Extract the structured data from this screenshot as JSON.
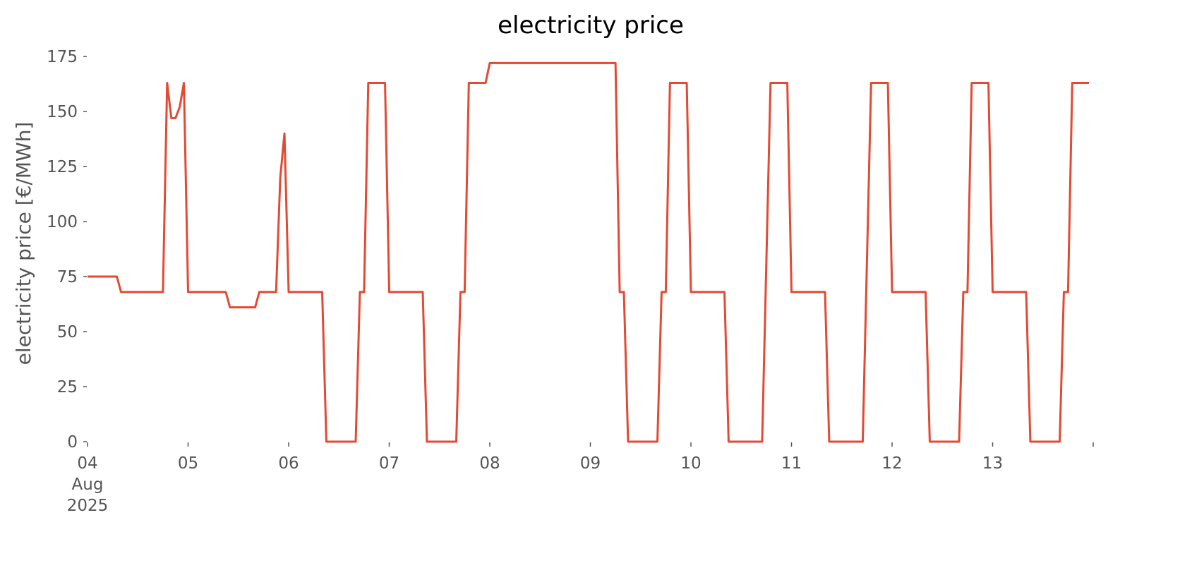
{
  "chart_data": {
    "type": "line",
    "title": "electricity price",
    "ylabel": "electricity price [€/MWh]",
    "x": [
      "2025-08-04T00:00",
      "2025-08-04T07:00",
      "2025-08-04T08:00",
      "2025-08-04T18:00",
      "2025-08-04T19:00",
      "2025-08-04T20:00",
      "2025-08-04T21:00",
      "2025-08-04T22:00",
      "2025-08-04T23:00",
      "2025-08-05T00:00",
      "2025-08-05T09:00",
      "2025-08-05T10:00",
      "2025-08-05T16:00",
      "2025-08-05T17:00",
      "2025-08-05T21:00",
      "2025-08-05T22:00",
      "2025-08-05T23:00",
      "2025-08-06T00:00",
      "2025-08-06T08:00",
      "2025-08-06T09:00",
      "2025-08-06T16:00",
      "2025-08-06T17:00",
      "2025-08-06T18:00",
      "2025-08-06T19:00",
      "2025-08-06T23:00",
      "2025-08-07T00:00",
      "2025-08-07T08:00",
      "2025-08-07T09:00",
      "2025-08-07T16:00",
      "2025-08-07T17:00",
      "2025-08-07T18:00",
      "2025-08-07T19:00",
      "2025-08-07T23:00",
      "2025-08-08T00:00",
      "2025-08-09T06:00",
      "2025-08-09T07:00",
      "2025-08-09T08:00",
      "2025-08-09T09:00",
      "2025-08-09T16:00",
      "2025-08-09T17:00",
      "2025-08-09T18:00",
      "2025-08-09T19:00",
      "2025-08-09T23:00",
      "2025-08-10T00:00",
      "2025-08-10T08:00",
      "2025-08-10T09:00",
      "2025-08-10T17:00",
      "2025-08-10T19:00",
      "2025-08-10T23:00",
      "2025-08-11T00:00",
      "2025-08-11T08:00",
      "2025-08-11T09:00",
      "2025-08-11T17:00",
      "2025-08-11T19:00",
      "2025-08-11T23:00",
      "2025-08-12T00:00",
      "2025-08-12T08:00",
      "2025-08-12T09:00",
      "2025-08-12T16:00",
      "2025-08-12T17:00",
      "2025-08-12T18:00",
      "2025-08-12T19:00",
      "2025-08-12T23:00",
      "2025-08-13T00:00",
      "2025-08-13T08:00",
      "2025-08-13T09:00",
      "2025-08-13T16:00",
      "2025-08-13T17:00",
      "2025-08-13T18:00",
      "2025-08-13T19:00",
      "2025-08-13T23:00"
    ],
    "series": [
      {
        "name": "electricity price",
        "color": "#E24A33",
        "values": [
          75,
          75,
          68,
          68,
          163,
          147,
          147,
          152,
          163,
          68,
          68,
          61,
          61,
          68,
          68,
          120,
          140,
          68,
          68,
          0,
          0,
          68,
          68,
          163,
          163,
          68,
          68,
          0,
          0,
          68,
          68,
          163,
          163,
          172,
          172,
          68,
          68,
          0,
          0,
          68,
          68,
          163,
          163,
          68,
          68,
          0,
          0,
          163,
          163,
          68,
          68,
          0,
          0,
          163,
          163,
          68,
          68,
          0,
          0,
          68,
          68,
          163,
          163,
          68,
          68,
          0,
          0,
          68,
          68,
          163,
          163
        ]
      }
    ],
    "xlim": [
      "2025-08-04T00:00",
      "2025-08-14T00:00"
    ],
    "xticks": [
      {
        "value": "2025-08-04T00:00",
        "label": "04\nAug\n2025"
      },
      {
        "value": "2025-08-05T00:00",
        "label": "05"
      },
      {
        "value": "2025-08-06T00:00",
        "label": "06"
      },
      {
        "value": "2025-08-07T00:00",
        "label": "07"
      },
      {
        "value": "2025-08-08T00:00",
        "label": "08"
      },
      {
        "value": "2025-08-09T00:00",
        "label": "09"
      },
      {
        "value": "2025-08-10T00:00",
        "label": "10"
      },
      {
        "value": "2025-08-11T00:00",
        "label": "11"
      },
      {
        "value": "2025-08-12T00:00",
        "label": "12"
      },
      {
        "value": "2025-08-13T00:00",
        "label": "13"
      }
    ],
    "ylim": [
      0,
      175
    ],
    "yticks": [
      0,
      25,
      50,
      75,
      100,
      125,
      150,
      175
    ],
    "grid": false
  }
}
